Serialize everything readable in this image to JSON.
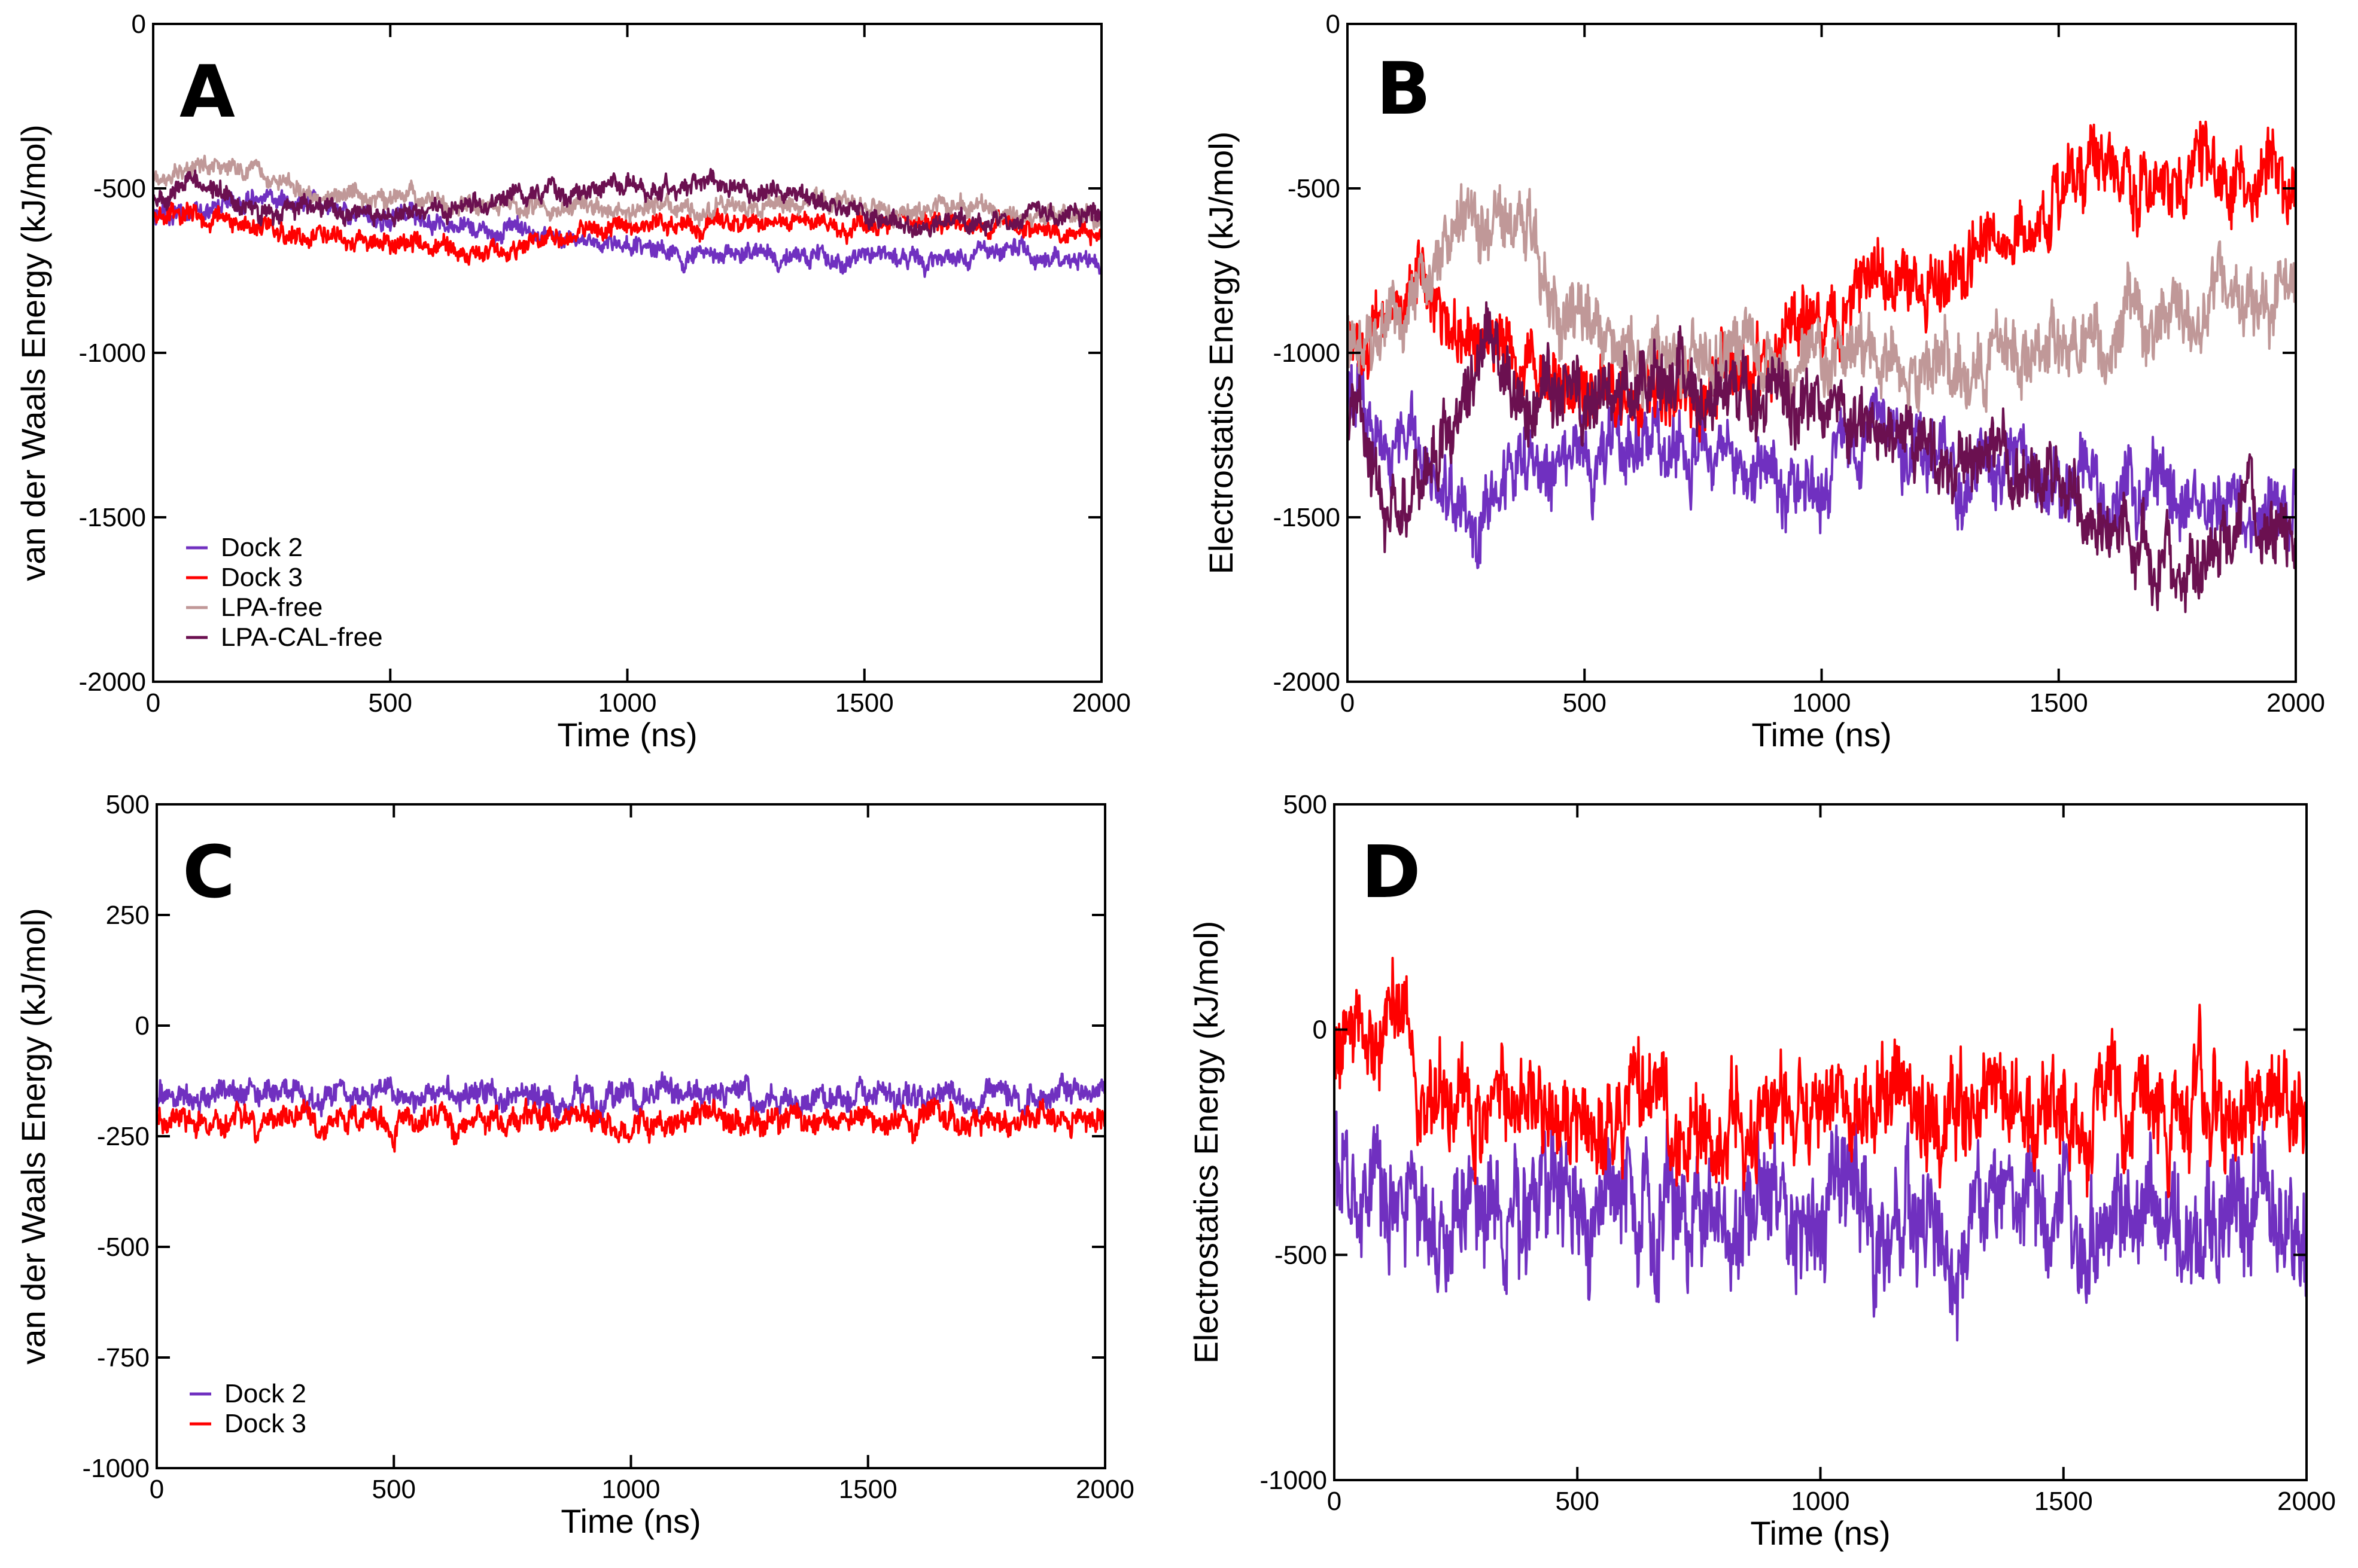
{
  "chart_data": [
    {
      "panel": "A",
      "type": "line",
      "xlabel": "Time (ns)",
      "ylabel": "van der Waals Energy (kJ/mol)",
      "xlim": [
        0,
        2000
      ],
      "ylim": [
        -2000,
        0
      ],
      "xticks": [
        0,
        500,
        1000,
        1500,
        2000
      ],
      "yticks": [
        0,
        -500,
        -1000,
        -1500,
        -2000
      ],
      "legend_position": "bottom-left",
      "series": [
        {
          "name": "Dock 2",
          "color": "#7030c0",
          "mean": [
            [
              0,
              -580
            ],
            [
              200,
              -540
            ],
            [
              400,
              -560
            ],
            [
              600,
              -600
            ],
            [
              800,
              -650
            ],
            [
              1000,
              -680
            ],
            [
              1200,
              -700
            ],
            [
              1400,
              -720
            ],
            [
              1600,
              -700
            ],
            [
              1800,
              -690
            ],
            [
              2000,
              -730
            ]
          ],
          "noise": 25
        },
        {
          "name": "Dock 3",
          "color": "#ff0000",
          "mean": [
            [
              0,
              -580
            ],
            [
              150,
              -600
            ],
            [
              300,
              -640
            ],
            [
              500,
              -660
            ],
            [
              700,
              -700
            ],
            [
              900,
              -640
            ],
            [
              1100,
              -610
            ],
            [
              1300,
              -600
            ],
            [
              1500,
              -610
            ],
            [
              1700,
              -600
            ],
            [
              1900,
              -620
            ],
            [
              2000,
              -640
            ]
          ],
          "noise": 25
        },
        {
          "name": "LPA-free",
          "color": "#c09898",
          "mean": [
            [
              0,
              -480
            ],
            [
              150,
              -420
            ],
            [
              300,
              -500
            ],
            [
              500,
              -540
            ],
            [
              800,
              -560
            ],
            [
              1000,
              -560
            ],
            [
              1200,
              -560
            ],
            [
              1400,
              -540
            ],
            [
              1600,
              -560
            ],
            [
              1800,
              -570
            ],
            [
              2000,
              -590
            ]
          ],
          "noise": 25
        },
        {
          "name": "LPA-CAL-free",
          "color": "#6b1050",
          "mean": [
            [
              0,
              -540
            ],
            [
              100,
              -480
            ],
            [
              200,
              -560
            ],
            [
              400,
              -580
            ],
            [
              600,
              -560
            ],
            [
              800,
              -520
            ],
            [
              1000,
              -500
            ],
            [
              1200,
              -480
            ],
            [
              1400,
              -540
            ],
            [
              1600,
              -620
            ],
            [
              1800,
              -600
            ],
            [
              2000,
              -570
            ]
          ],
          "noise": 25
        }
      ]
    },
    {
      "panel": "B",
      "type": "line",
      "xlabel": "Time (ns)",
      "ylabel": "Electrostatics Energy (kJ/mol)",
      "xlim": [
        0,
        2000
      ],
      "ylim": [
        -2000,
        0
      ],
      "xticks": [
        0,
        500,
        1000,
        1500,
        2000
      ],
      "yticks": [
        0,
        -500,
        -1000,
        -1500,
        -2000
      ],
      "series": [
        {
          "name": "Dock 2",
          "color": "#7030c0",
          "mean": [
            [
              0,
              -1100
            ],
            [
              150,
              -1400
            ],
            [
              300,
              -1450
            ],
            [
              500,
              -1250
            ],
            [
              700,
              -1300
            ],
            [
              900,
              -1400
            ],
            [
              1100,
              -1300
            ],
            [
              1300,
              -1350
            ],
            [
              1500,
              -1400
            ],
            [
              1700,
              -1450
            ],
            [
              1900,
              -1500
            ],
            [
              2000,
              -1400
            ]
          ],
          "noise": 90
        },
        {
          "name": "Dock 3",
          "color": "#ff0000",
          "mean": [
            [
              0,
              -1000
            ],
            [
              150,
              -800
            ],
            [
              300,
              -1000
            ],
            [
              500,
              -1150
            ],
            [
              700,
              -1150
            ],
            [
              900,
              -950
            ],
            [
              1100,
              -800
            ],
            [
              1300,
              -750
            ],
            [
              1500,
              -550
            ],
            [
              1700,
              -450
            ],
            [
              1900,
              -450
            ],
            [
              2000,
              -480
            ]
          ],
          "noise": 90
        },
        {
          "name": "LPA-free",
          "color": "#c09898",
          "mean": [
            [
              0,
              -1000
            ],
            [
              150,
              -800
            ],
            [
              250,
              -650
            ],
            [
              380,
              -600
            ],
            [
              450,
              -900
            ],
            [
              600,
              -1000
            ],
            [
              800,
              -1000
            ],
            [
              1000,
              -1000
            ],
            [
              1200,
              -1000
            ],
            [
              1400,
              -1050
            ],
            [
              1600,
              -900
            ],
            [
              1800,
              -850
            ],
            [
              2000,
              -850
            ]
          ],
          "noise": 90
        },
        {
          "name": "LPA-CAL-free",
          "color": "#6b1050",
          "mean": [
            [
              0,
              -1200
            ],
            [
              100,
              -1500
            ],
            [
              200,
              -1300
            ],
            [
              300,
              -1000
            ],
            [
              500,
              -1150
            ],
            [
              700,
              -1050
            ],
            [
              900,
              -1150
            ],
            [
              1100,
              -1200
            ],
            [
              1300,
              -1350
            ],
            [
              1500,
              -1400
            ],
            [
              1700,
              -1600
            ],
            [
              1800,
              -1650
            ],
            [
              1900,
              -1500
            ],
            [
              2000,
              -1600
            ]
          ],
          "noise": 90
        }
      ]
    },
    {
      "panel": "C",
      "type": "line",
      "xlabel": "Time (ns)",
      "ylabel": "van der Waals Energy (kJ/mol)",
      "xlim": [
        0,
        2000
      ],
      "ylim": [
        -1000,
        500
      ],
      "xticks": [
        0,
        500,
        1000,
        1500,
        2000
      ],
      "yticks": [
        500,
        250,
        0,
        -250,
        -500,
        -750,
        -1000
      ],
      "legend_position": "bottom-left",
      "series": [
        {
          "name": "Dock 2",
          "color": "#7030c0",
          "mean": [
            [
              0,
              -160
            ],
            [
              2000,
              -160
            ]
          ],
          "noise": 25
        },
        {
          "name": "Dock 3",
          "color": "#ff0000",
          "mean": [
            [
              0,
              -215
            ],
            [
              2000,
              -215
            ]
          ],
          "noise": 25
        }
      ]
    },
    {
      "panel": "D",
      "type": "line",
      "xlabel": "Time (ns)",
      "ylabel": "Electrostatics Energy (kJ/mol)",
      "xlim": [
        0,
        2000
      ],
      "ylim": [
        -1000,
        500
      ],
      "xticks": [
        0,
        500,
        1000,
        1500,
        2000
      ],
      "yticks": [
        500,
        0,
        -500,
        -1000
      ],
      "series": [
        {
          "name": "Dock 2",
          "color": "#7030c0",
          "mean": [
            [
              0,
              -300
            ],
            [
              200,
              -420
            ],
            [
              1000,
              -420
            ],
            [
              2000,
              -420
            ]
          ],
          "noise": 110
        },
        {
          "name": "Dock 3",
          "color": "#ff0000",
          "mean": [
            [
              0,
              -20
            ],
            [
              150,
              -20
            ],
            [
              170,
              -180
            ],
            [
              1000,
              -180
            ],
            [
              2000,
              -180
            ]
          ],
          "noise": 90
        }
      ]
    }
  ]
}
